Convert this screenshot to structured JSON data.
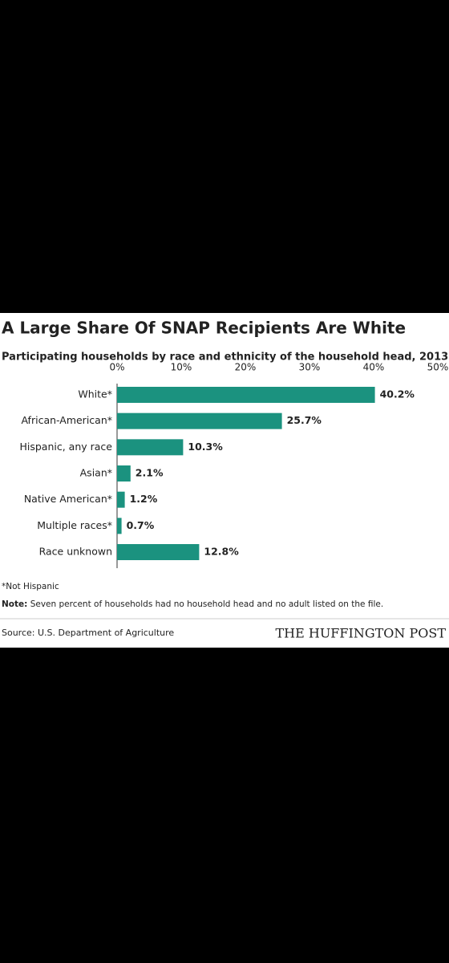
{
  "chart_data": {
    "type": "bar",
    "orientation": "horizontal",
    "title": "A Large Share Of SNAP Recipients Are White",
    "subtitle": "Participating households by race and ethnicity of the household head, 2013",
    "categories": [
      "White*",
      "African-American*",
      "Hispanic, any race",
      "Asian*",
      "Native American*",
      "Multiple races*",
      "Race unknown"
    ],
    "values": [
      40.2,
      25.7,
      10.3,
      2.1,
      1.2,
      0.7,
      12.8
    ],
    "value_labels": [
      "40.2%",
      "25.7%",
      "10.3%",
      "2.1%",
      "1.2%",
      "0.7%",
      "12.8%"
    ],
    "color": "#1b927f",
    "xlim": [
      0,
      50
    ],
    "xticks": [
      {
        "value": 0,
        "label": "0%"
      },
      {
        "value": 10,
        "label": "10%"
      },
      {
        "value": 20,
        "label": "20%"
      },
      {
        "value": 30,
        "label": "30%"
      },
      {
        "value": 40,
        "label": "40%"
      },
      {
        "value": 50,
        "label": "50%"
      }
    ],
    "footnote": "*Not Hispanic",
    "note_label": "Note:",
    "note": "Seven percent of households had no household head and no adult listed on the file.",
    "source": "Source: U.S. Department of Agriculture",
    "publisher": "THE HUFFINGTON POST"
  }
}
